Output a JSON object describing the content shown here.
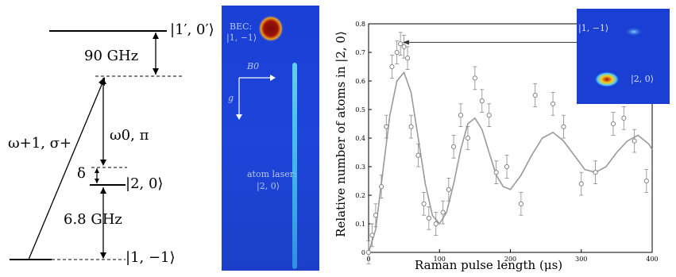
{
  "energy_diagram": {
    "levels": {
      "excited": "|1′, 0′⟩",
      "upper": "|2, 0⟩",
      "lower": "|1, −1⟩"
    },
    "gaps": {
      "detuning_big": "90 GHz",
      "hyperfine": "6.8 GHz",
      "delta": "δ"
    },
    "beams": {
      "sigma": "ω+1, σ+",
      "pi": "ω0, π"
    }
  },
  "absorption_image": {
    "bec_label_line1": "BEC:",
    "bec_label_line2": "|1, −1⟩",
    "atom_laser_line1": "atom laser:",
    "atom_laser_line2": "|2, 0⟩",
    "b_field": "B0",
    "gravity": "g"
  },
  "inset": {
    "state_a": "|1, −1⟩",
    "state_b": "|2, 0⟩"
  },
  "colors": {
    "image_background": "#1d45d8",
    "bec_core": "#8b0d0d",
    "bec_halo": "#f0c020",
    "laser_beam": "#3fb7e8"
  },
  "chart_data": {
    "type": "scatter",
    "xlabel": "Raman pulse length (μs)",
    "ylabel": "Relative number of atoms in |2, 0⟩",
    "xlim": [
      0,
      400
    ],
    "ylim": [
      0,
      0.8
    ],
    "xticks": [
      0,
      100,
      200,
      300,
      400
    ],
    "yticks": [
      0,
      0.1,
      0.2,
      0.3,
      0.4,
      0.5,
      0.6,
      0.7,
      0.8
    ],
    "series": [
      {
        "kind": "points_with_errorbars",
        "x": [
          0,
          5,
          10,
          18,
          25,
          33,
          40,
          45,
          50,
          55,
          60,
          70,
          78,
          85,
          95,
          105,
          113,
          120,
          130,
          140,
          150,
          160,
          170,
          180,
          195,
          215,
          235,
          260,
          275,
          300,
          320,
          345,
          360,
          375,
          392
        ],
        "y": [
          0.0,
          0.06,
          0.13,
          0.23,
          0.44,
          0.65,
          0.7,
          0.73,
          0.72,
          0.68,
          0.44,
          0.34,
          0.17,
          0.12,
          0.1,
          0.14,
          0.22,
          0.37,
          0.48,
          0.4,
          0.61,
          0.53,
          0.48,
          0.28,
          0.3,
          0.17,
          0.55,
          0.52,
          0.44,
          0.24,
          0.28,
          0.45,
          0.47,
          0.39,
          0.25
        ],
        "yerr": 0.04
      },
      {
        "kind": "fit_curve",
        "x": [
          0,
          10,
          20,
          30,
          40,
          50,
          60,
          70,
          80,
          90,
          100,
          110,
          120,
          130,
          140,
          150,
          160,
          170,
          180,
          190,
          200,
          215,
          230,
          245,
          260,
          275,
          290,
          305,
          320,
          335,
          350,
          365,
          380,
          395,
          400
        ],
        "y": [
          0.0,
          0.08,
          0.28,
          0.48,
          0.6,
          0.63,
          0.56,
          0.4,
          0.24,
          0.13,
          0.1,
          0.14,
          0.24,
          0.36,
          0.45,
          0.47,
          0.43,
          0.35,
          0.27,
          0.23,
          0.22,
          0.27,
          0.34,
          0.4,
          0.42,
          0.39,
          0.34,
          0.29,
          0.28,
          0.3,
          0.35,
          0.39,
          0.41,
          0.38,
          0.36
        ]
      }
    ],
    "annotation": "arrow from data point near 45 μs to inset image"
  }
}
